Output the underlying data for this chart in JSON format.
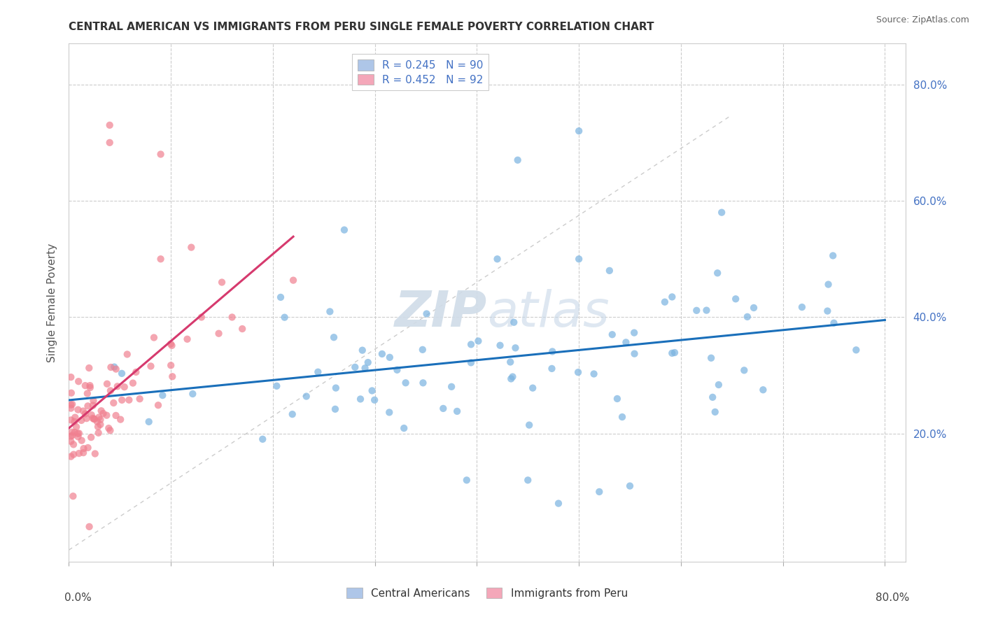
{
  "title": "CENTRAL AMERICAN VS IMMIGRANTS FROM PERU SINGLE FEMALE POVERTY CORRELATION CHART",
  "source": "Source: ZipAtlas.com",
  "ylabel": "Single Female Poverty",
  "xlim": [
    0.0,
    0.82
  ],
  "ylim": [
    -0.02,
    0.87
  ],
  "legend_color1": "#aec6e8",
  "legend_color2": "#f4a7b9",
  "scatter_color1": "#7ab3e0",
  "scatter_color2": "#f08090",
  "line_color1": "#1a6fba",
  "line_color2": "#d63a6e",
  "diagonal_color": "#cccccc",
  "right_tick_color": "#4472c4",
  "grid_color": "#cccccc",
  "watermark_color": "#d0dce8",
  "title_color": "#333333",
  "source_color": "#666666"
}
